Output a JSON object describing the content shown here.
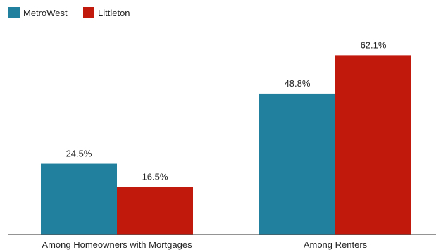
{
  "chart_data": {
    "type": "bar",
    "categories": [
      "Among Homeowners with Mortgages",
      "Among Renters"
    ],
    "series": [
      {
        "name": "MetroWest",
        "values": [
          24.5,
          48.8
        ],
        "value_labels": [
          "24.5%",
          "48.8%"
        ]
      },
      {
        "name": "Littleton",
        "values": [
          16.5,
          62.1
        ],
        "value_labels": [
          "16.5%",
          "62.1%"
        ]
      }
    ],
    "ylim": [
      0,
      70
    ],
    "unit": "%",
    "legend_position": "top-left",
    "grid": false
  },
  "colors": {
    "MetroWest": "#20809e",
    "Littleton": "#c2190d",
    "axis": "#555555",
    "text": "#222222"
  }
}
